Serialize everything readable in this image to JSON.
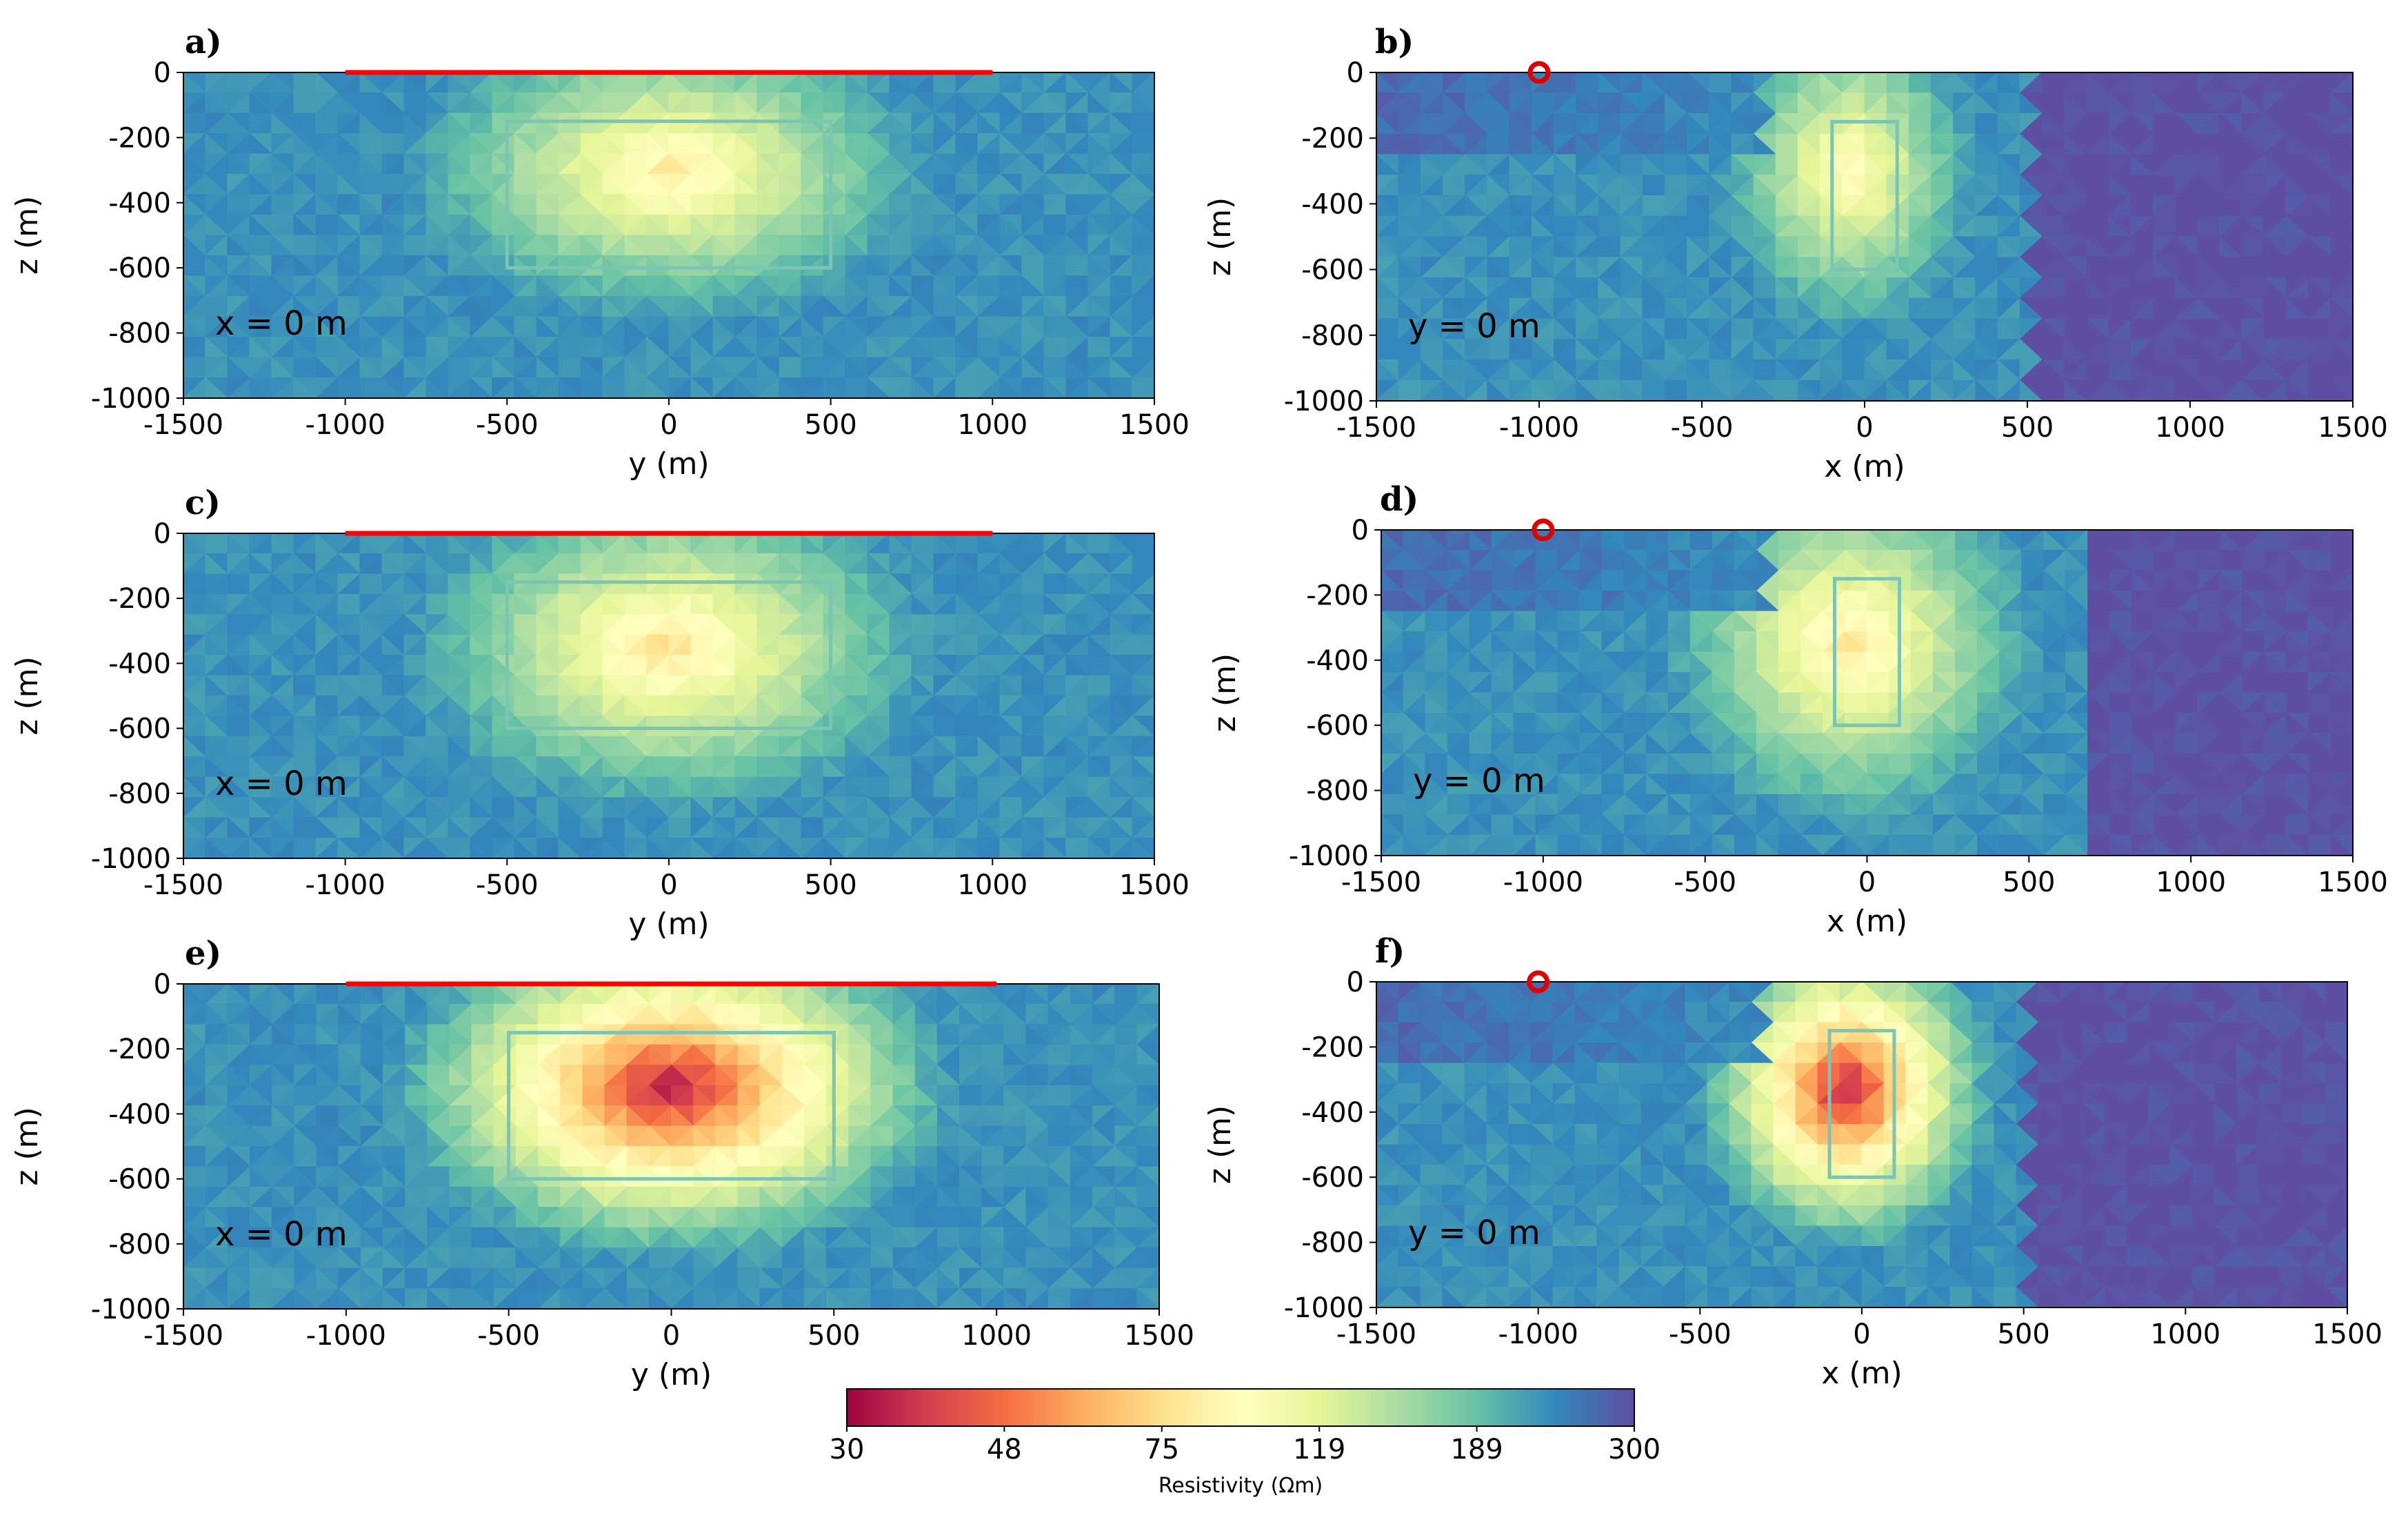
{
  "chart_data": [
    {
      "panel": "a)",
      "type": "heatmap",
      "section": "x = 0 m",
      "xlabel": "y (m)",
      "ylabel": "z (m)",
      "xlim": [
        -1500,
        1500
      ],
      "ylim": [
        -1000,
        0
      ],
      "xticks": [
        -1500,
        -1000,
        -500,
        0,
        500,
        1000,
        1500
      ],
      "yticks": [
        0,
        -200,
        -400,
        -600,
        -800,
        -1000
      ],
      "target_box": {
        "x": [
          -500,
          500
        ],
        "z": [
          -600,
          -150
        ]
      },
      "receiver_line": [
        -1000,
        1000
      ],
      "anomaly": {
        "center": [
          0,
          -300
        ],
        "radius": [
          850,
          500
        ],
        "min_resistivity": 80
      }
    },
    {
      "panel": "b)",
      "type": "heatmap",
      "section": "y = 0 m",
      "xlabel": "x (m)",
      "ylabel": "z (m)",
      "xlim": [
        -1500,
        1500
      ],
      "ylim": [
        -1000,
        0
      ],
      "xticks": [
        -1500,
        -1000,
        -500,
        0,
        500,
        1000,
        1500
      ],
      "yticks": [
        0,
        -200,
        -400,
        -600,
        -800,
        -1000
      ],
      "target_box": {
        "x": [
          -100,
          100
        ],
        "z": [
          -600,
          -150
        ]
      },
      "source_marker": -1000,
      "anomaly": {
        "center": [
          -50,
          -300
        ],
        "radius": [
          420,
          520
        ],
        "min_resistivity": 85
      },
      "high_resistivity_zone_from_x": 500
    },
    {
      "panel": "c)",
      "type": "heatmap",
      "section": "x = 0 m",
      "xlabel": "y (m)",
      "ylabel": "z (m)",
      "xlim": [
        -1500,
        1500
      ],
      "ylim": [
        -1000,
        0
      ],
      "xticks": [
        -1500,
        -1000,
        -500,
        0,
        500,
        1000,
        1500
      ],
      "yticks": [
        0,
        -200,
        -400,
        -600,
        -800,
        -1000
      ],
      "target_box": {
        "x": [
          -500,
          500
        ],
        "z": [
          -600,
          -150
        ]
      },
      "receiver_line": [
        -1000,
        1000
      ],
      "anomaly": {
        "center": [
          0,
          -350
        ],
        "radius": [
          850,
          550
        ],
        "min_resistivity": 75
      }
    },
    {
      "panel": "d)",
      "type": "heatmap",
      "section": "y = 0 m",
      "xlabel": "x (m)",
      "ylabel": "z (m)",
      "xlim": [
        -1500,
        1500
      ],
      "ylim": [
        -1000,
        0
      ],
      "xticks": [
        -1500,
        -1000,
        -500,
        0,
        500,
        1000,
        1500
      ],
      "yticks": [
        0,
        -200,
        -400,
        -600,
        -800,
        -1000
      ],
      "target_box": {
        "x": [
          -100,
          100
        ],
        "z": [
          -600,
          -150
        ]
      },
      "source_marker": -1000,
      "anomaly": {
        "center": [
          -50,
          -350
        ],
        "radius": [
          600,
          600
        ],
        "min_resistivity": 75
      },
      "high_resistivity_zone_from_x": 700
    },
    {
      "panel": "e)",
      "type": "heatmap",
      "section": "x = 0 m",
      "xlabel": "y (m)",
      "ylabel": "z (m)",
      "xlim": [
        -1500,
        1500
      ],
      "ylim": [
        -1000,
        0
      ],
      "xticks": [
        -1500,
        -1000,
        -500,
        0,
        500,
        1000,
        1500
      ],
      "yticks": [
        0,
        -200,
        -400,
        -600,
        -800,
        -1000
      ],
      "target_box": {
        "x": [
          -500,
          500
        ],
        "z": [
          -600,
          -150
        ]
      },
      "receiver_line": [
        -1000,
        1000
      ],
      "anomaly": {
        "center": [
          0,
          -320
        ],
        "radius": [
          900,
          560
        ],
        "min_resistivity": 32
      }
    },
    {
      "panel": "f)",
      "type": "heatmap",
      "section": "y = 0 m",
      "xlabel": "x (m)",
      "ylabel": "z (m)",
      "xlim": [
        -1500,
        1500
      ],
      "ylim": [
        -1000,
        0
      ],
      "xticks": [
        -1500,
        -1000,
        -500,
        0,
        500,
        1000,
        1500
      ],
      "yticks": [
        0,
        -200,
        -400,
        -600,
        -800,
        -1000
      ],
      "target_box": {
        "x": [
          -100,
          100
        ],
        "z": [
          -600,
          -150
        ]
      },
      "source_marker": -1000,
      "anomaly": {
        "center": [
          -50,
          -330
        ],
        "radius": [
          480,
          520
        ],
        "min_resistivity": 32
      },
      "high_resistivity_zone_from_x": 500
    }
  ],
  "colorbar": {
    "label": "Resistivity (Ωm)",
    "ticks": [
      "30",
      "48",
      "75",
      "119",
      "189",
      "300"
    ],
    "range": [
      30,
      300
    ],
    "scale": "log",
    "colors": [
      "#9e0142",
      "#d53e4f",
      "#f46d43",
      "#fdae61",
      "#fee08b",
      "#ffffbf",
      "#e6f598",
      "#abdda4",
      "#66c2a5",
      "#3288bd",
      "#5e4fa2"
    ]
  },
  "colors": {
    "target_box": "#7cc4b4",
    "receiver_line": "#ff0000",
    "source_marker": "#e00000",
    "background_resistivity": 230
  }
}
